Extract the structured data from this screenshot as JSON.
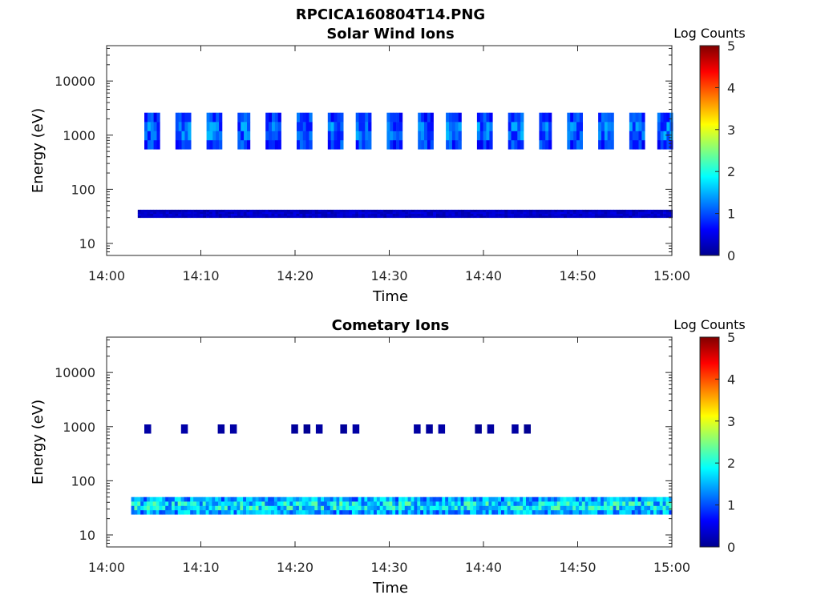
{
  "figure_title": "RPCICA160804T14.PNG",
  "colorbar": {
    "label": "Log Counts",
    "ticks": [
      "0",
      "1",
      "2",
      "3",
      "4",
      "5"
    ],
    "range": [
      0,
      5
    ],
    "colormap": "jet"
  },
  "chart_data": [
    {
      "type": "heatmap",
      "title": "Solar Wind Ions",
      "xlabel": "Time",
      "ylabel": "Energy (eV)",
      "xticks": [
        "14:00",
        "14:10",
        "14:20",
        "14:30",
        "14:40",
        "14:50",
        "15:00"
      ],
      "xlim_minutes": [
        0,
        60
      ],
      "yticks": [
        "10",
        "100",
        "1000",
        "10000"
      ],
      "yscale": "log",
      "ylim": [
        6,
        45000
      ],
      "bands": [
        {
          "name": "",
          "e_min": 30,
          "e_max": 42,
          "t_start": 3.3,
          "t_end": 60,
          "value": 0.3
        },
        {
          "name": "",
          "e_min": 550,
          "e_max": 2600,
          "t_start": 4,
          "t_end": 60,
          "value": 0.9,
          "period_min": 3.2,
          "width_min": 1.6
        }
      ]
    },
    {
      "type": "heatmap",
      "title": "Cometary Ions",
      "xlabel": "Time",
      "ylabel": "Energy (eV)",
      "xticks": [
        "14:00",
        "14:10",
        "14:20",
        "14:30",
        "14:40",
        "14:50",
        "15:00"
      ],
      "xlim_minutes": [
        0,
        60
      ],
      "yticks": [
        "10",
        "100",
        "1000",
        "10000"
      ],
      "yscale": "log",
      "ylim": [
        6,
        45000
      ],
      "bands": [
        {
          "name": "",
          "e_min": 24,
          "e_max": 50,
          "t_start": 2.6,
          "t_end": 60,
          "value": 1.4
        },
        {
          "name": "",
          "e_min": 750,
          "e_max": 1100,
          "t_start": 4,
          "t_end": 50,
          "value": 0.15,
          "sparse": true
        }
      ]
    }
  ]
}
